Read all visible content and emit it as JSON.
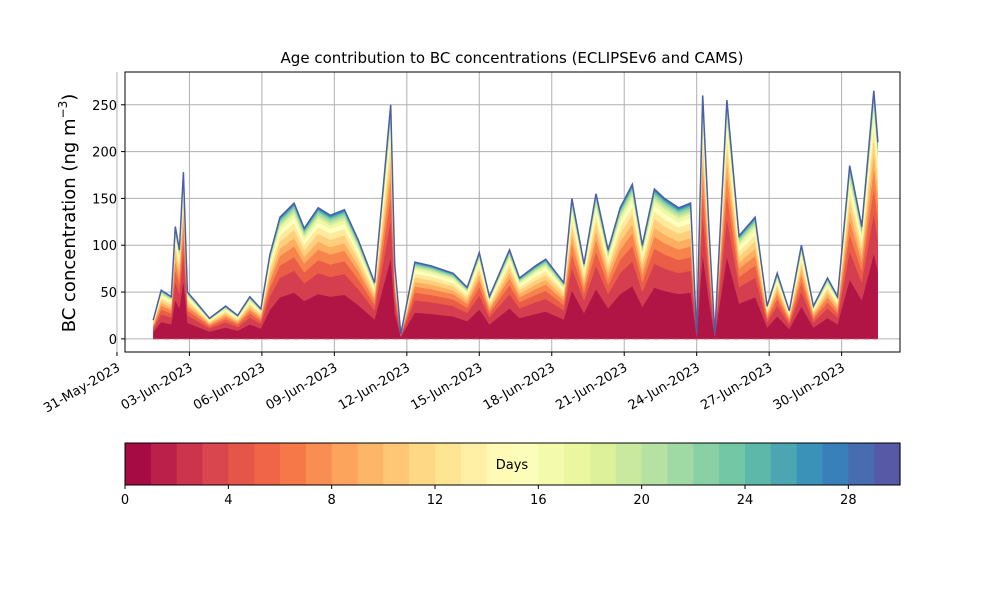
{
  "chart_data": {
    "type": "area",
    "title": "Age contribution to BC concentrations (ECLIPSEv6 and CAMS)",
    "ylabel_text": "BC concentration (ng m",
    "ylabel_exp": "−3",
    "ylabel_close": ")",
    "xlabel": "",
    "ylim": [
      -14,
      285
    ],
    "xlim": [
      "2023-05-31T08:00",
      "2023-07-02T10:00"
    ],
    "grid": true,
    "yticks": [
      0,
      50,
      100,
      150,
      200,
      250
    ],
    "xticks": [
      "31-May-2023",
      "03-Jun-2023",
      "06-Jun-2023",
      "09-Jun-2023",
      "12-Jun-2023",
      "15-Jun-2023",
      "18-Jun-2023",
      "21-Jun-2023",
      "24-Jun-2023",
      "27-Jun-2023",
      "30-Jun-2023"
    ],
    "xtick_dates": [
      "2023-05-31",
      "2023-06-03",
      "2023-06-06",
      "2023-06-09",
      "2023-06-12",
      "2023-06-15",
      "2023-06-18",
      "2023-06-21",
      "2023-06-24",
      "2023-06-27",
      "2023-06-30"
    ],
    "total": {
      "x": [
        "2023-06-01T12:00",
        "2023-06-01T20:00",
        "2023-06-02T06:00",
        "2023-06-02T10:00",
        "2023-06-02T14:00",
        "2023-06-02T18:00",
        "2023-06-02T22:00",
        "2023-06-03T06:00",
        "2023-06-03T20:00",
        "2023-06-04T12:00",
        "2023-06-05T00:00",
        "2023-06-05T12:00",
        "2023-06-05T23:00",
        "2023-06-06T08:00",
        "2023-06-06T18:00",
        "2023-06-07T08:00",
        "2023-06-07T18:00",
        "2023-06-08T08:00",
        "2023-06-08T20:00",
        "2023-06-09T10:00",
        "2023-06-10T00:00",
        "2023-06-10T16:00",
        "2023-06-11T08:00",
        "2023-06-11T12:00",
        "2023-06-11T18:00",
        "2023-06-12T08:00",
        "2023-06-13T00:00",
        "2023-06-13T22:00",
        "2023-06-14T12:00",
        "2023-06-15T00:00",
        "2023-06-15T10:00",
        "2023-06-16T06:00",
        "2023-06-16T16:00",
        "2023-06-17T08:00",
        "2023-06-17T18:00",
        "2023-06-18T12:00",
        "2023-06-18T20:00",
        "2023-06-19T08:00",
        "2023-06-19T20:00",
        "2023-06-20T08:00",
        "2023-06-20T20:00",
        "2023-06-21T08:00",
        "2023-06-21T18:00",
        "2023-06-22T06:00",
        "2023-06-22T16:00",
        "2023-06-23T06:00",
        "2023-06-23T18:00",
        "2023-06-24T00:00",
        "2023-06-24T06:00",
        "2023-06-24T12:00",
        "2023-06-24T18:00",
        "2023-06-25T06:00",
        "2023-06-25T18:00",
        "2023-06-26T10:00",
        "2023-06-26T22:00",
        "2023-06-27T08:00",
        "2023-06-27T20:00",
        "2023-06-28T08:00",
        "2023-06-28T20:00",
        "2023-06-29T10:00",
        "2023-06-29T20:00",
        "2023-06-30T08:00",
        "2023-06-30T20:00",
        "2023-07-01T08:00",
        "2023-07-01T12:00"
      ],
      "y": [
        20,
        52,
        45,
        120,
        95,
        178,
        50,
        40,
        22,
        35,
        25,
        45,
        32,
        90,
        130,
        145,
        118,
        140,
        132,
        138,
        105,
        60,
        250,
        80,
        5,
        82,
        78,
        70,
        55,
        92,
        45,
        95,
        65,
        78,
        85,
        60,
        150,
        80,
        155,
        95,
        140,
        165,
        100,
        160,
        150,
        140,
        145,
        5,
        260,
        120,
        5,
        255,
        110,
        130,
        35,
        70,
        30,
        100,
        35,
        65,
        45,
        185,
        120,
        265,
        210
      ]
    },
    "age_bins": {
      "days": [
        0,
        2,
        4,
        6,
        8,
        10,
        12,
        14,
        16,
        18,
        20,
        22,
        24,
        26,
        28,
        30
      ],
      "cumulative_fraction": [
        0,
        0.34,
        0.5,
        0.6,
        0.68,
        0.74,
        0.8,
        0.85,
        0.89,
        0.92,
        0.94,
        0.96,
        0.975,
        0.985,
        0.995,
        1
      ]
    },
    "colorbar": {
      "label": "Days",
      "min": 0,
      "max": 30,
      "ticks": [
        0,
        4,
        8,
        12,
        16,
        20,
        24,
        28
      ],
      "levels": 30,
      "colormap": "Spectral",
      "palette": [
        "#9e0142",
        "#d53e4f",
        "#f46d43",
        "#fdae61",
        "#fee08b",
        "#ffffbf",
        "#e6f598",
        "#abdda4",
        "#66c2a5",
        "#3288bd",
        "#5e4fa2"
      ]
    }
  }
}
